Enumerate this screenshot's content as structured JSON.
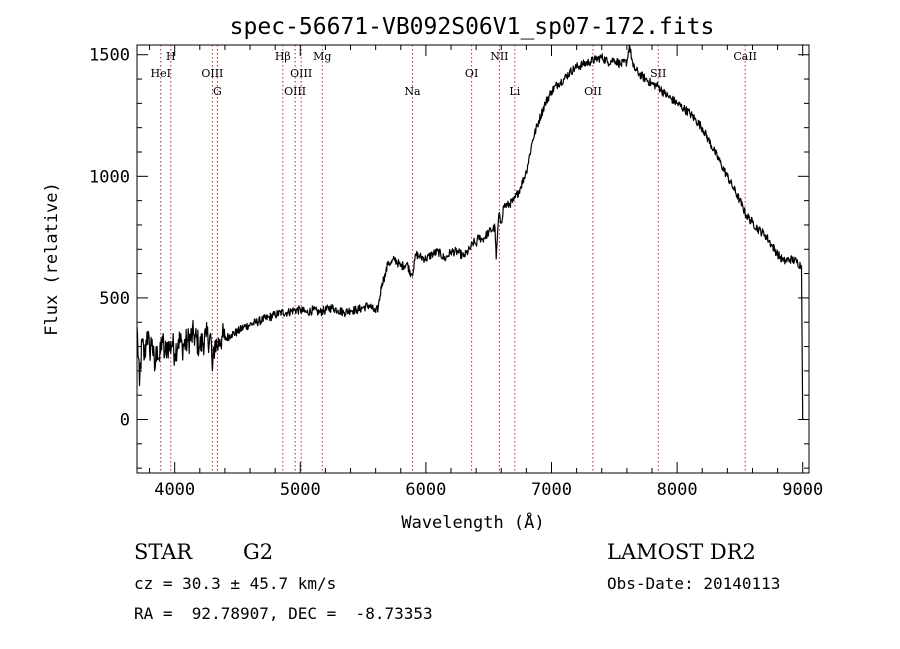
{
  "chart_data": {
    "type": "line",
    "title": "spec-56671-VB092S06V1_sp07-172.fits",
    "xlabel": "Wavelength (Å)",
    "ylabel": "Flux (relative)",
    "xlim": [
      3700,
      9050
    ],
    "ylim": [
      -220,
      1540
    ],
    "x_ticks": [
      4000,
      5000,
      6000,
      7000,
      8000,
      9000
    ],
    "y_ticks": [
      0,
      500,
      1000,
      1500
    ],
    "grid": false,
    "series": [
      {
        "x": [
          3700,
          3720,
          3740,
          3760,
          3780,
          3800,
          3820,
          3840,
          3860,
          3880,
          3900,
          3920,
          3940,
          3960,
          3980,
          4000,
          4030,
          4060,
          4100,
          4150,
          4200,
          4250,
          4290,
          4300,
          4320,
          4340,
          4360,
          4380,
          4400,
          4450,
          4500,
          4550,
          4600,
          4650,
          4700,
          4750,
          4800,
          4850,
          4900,
          4950,
          5000,
          5050,
          5100,
          5150,
          5200,
          5250,
          5300,
          5350,
          5400,
          5450,
          5500,
          5550,
          5600,
          5620,
          5650,
          5680,
          5700,
          5720,
          5750,
          5800,
          5850,
          5880,
          5900,
          5920,
          5950,
          6000,
          6050,
          6100,
          6150,
          6200,
          6250,
          6300,
          6350,
          6380,
          6400,
          6420,
          6450,
          6500,
          6550,
          6560,
          6580,
          6600,
          6620,
          6650,
          6700,
          6750,
          6800,
          6850,
          6900,
          6950,
          7000,
          7050,
          7100,
          7150,
          7200,
          7250,
          7300,
          7350,
          7400,
          7450,
          7500,
          7550,
          7600,
          7620,
          7650,
          7700,
          7750,
          7800,
          7850,
          7900,
          7950,
          8000,
          8050,
          8100,
          8150,
          8200,
          8250,
          8300,
          8350,
          8400,
          8450,
          8500,
          8550,
          8600,
          8650,
          8700,
          8750,
          8800,
          8850,
          8900,
          8950,
          8990,
          9000,
          9010
        ],
        "y": [
          380,
          140,
          320,
          250,
          360,
          280,
          330,
          200,
          300,
          240,
          340,
          260,
          310,
          290,
          320,
          270,
          330,
          300,
          320,
          350,
          300,
          340,
          330,
          200,
          320,
          300,
          330,
          340,
          330,
          350,
          360,
          380,
          390,
          400,
          410,
          420,
          430,
          440,
          440,
          450,
          450,
          440,
          450,
          440,
          450,
          460,
          450,
          440,
          450,
          450,
          460,
          470,
          440,
          460,
          560,
          600,
          650,
          640,
          660,
          630,
          640,
          600,
          610,
          680,
          670,
          660,
          680,
          690,
          660,
          690,
          690,
          670,
          700,
          730,
          720,
          750,
          740,
          770,
          790,
          660,
          840,
          810,
          880,
          880,
          900,
          950,
          1020,
          1150,
          1230,
          1300,
          1350,
          1380,
          1400,
          1430,
          1450,
          1460,
          1470,
          1480,
          1490,
          1470,
          1480,
          1460,
          1470,
          1540,
          1450,
          1420,
          1400,
          1380,
          1370,
          1340,
          1320,
          1300,
          1280,
          1260,
          1230,
          1200,
          1150,
          1100,
          1050,
          1000,
          950,
          900,
          840,
          810,
          780,
          760,
          720,
          680,
          650,
          660,
          650,
          630,
          0,
          0
        ]
      }
    ],
    "spectral_lines": [
      {
        "label": "HeI",
        "x": 3889,
        "row": 2
      },
      {
        "label": "H",
        "x": 3969,
        "row": 1
      },
      {
        "label": "OIII",
        "x": 4300,
        "row": 2
      },
      {
        "label": "G",
        "x": 4340,
        "row": 3
      },
      {
        "label": "Hβ",
        "x": 4861,
        "row": 1
      },
      {
        "label": "OIII",
        "x": 4959,
        "row": 3
      },
      {
        "label": "OIII",
        "x": 5007,
        "row": 2
      },
      {
        "label": "Mg",
        "x": 5175,
        "row": 1
      },
      {
        "label": "Na",
        "x": 5893,
        "row": 3
      },
      {
        "label": "OI",
        "x": 6364,
        "row": 2
      },
      {
        "label": "NII",
        "x": 6585,
        "row": 1
      },
      {
        "label": "Li",
        "x": 6708,
        "row": 3
      },
      {
        "label": "OII",
        "x": 7330,
        "row": 3
      },
      {
        "label": "SII",
        "x": 7850,
        "row": 2
      },
      {
        "label": "CaII",
        "x": 8542,
        "row": 1
      }
    ]
  },
  "info": {
    "class": "STAR",
    "subclass": "G2",
    "survey": "LAMOST DR2",
    "cz": "cz = 30.3 ± 45.7 km/s",
    "obs_date": "Obs-Date: 20140113",
    "coords": "RA =  92.78907, DEC =  -8.73353"
  },
  "colors": {
    "spectrum": "#000000",
    "line_markers": "#b22222",
    "axes": "#000000"
  }
}
